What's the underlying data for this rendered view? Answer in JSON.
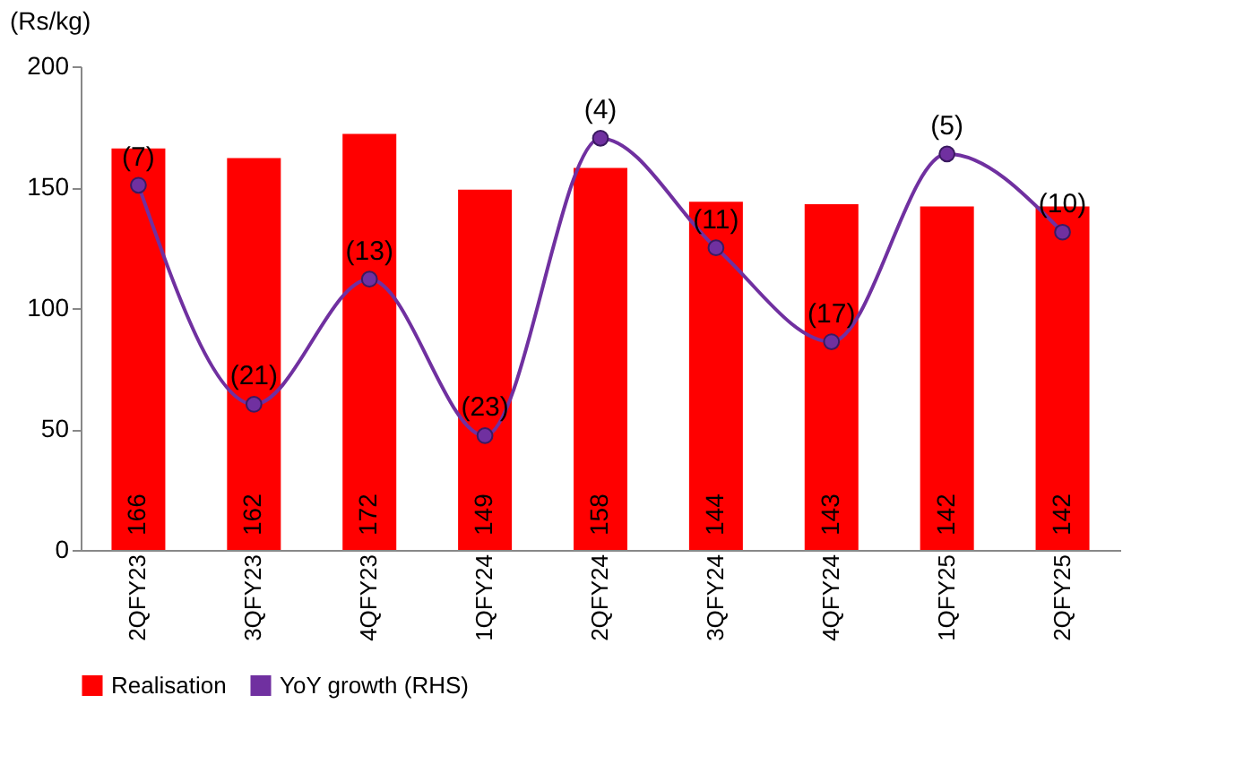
{
  "chart_data": {
    "type": "bar",
    "ylabel": "(Rs/kg)",
    "categories": [
      "2QFY23",
      "3QFY23",
      "4QFY23",
      "1QFY24",
      "2QFY24",
      "3QFY24",
      "4QFY24",
      "1QFY25",
      "2QFY25"
    ],
    "series": [
      {
        "name": "Realisation",
        "color": "#ff0000",
        "values": [
          166,
          162,
          172,
          149,
          158,
          144,
          143,
          142,
          142
        ],
        "data_labels": true
      },
      {
        "name": "YoY growth (RHS)",
        "type": "line",
        "axis": "y2",
        "color": "#7030a0",
        "marker": "circle",
        "values": [
          -7,
          -21,
          -13,
          -23,
          -4,
          -11,
          -17,
          -5,
          -10
        ],
        "value_labels": [
          "(7)",
          "(21)",
          "(13)",
          "(23)",
          "(4)",
          "(11)",
          "(17)",
          "(5)",
          "(10)"
        ]
      }
    ],
    "ylim": [
      0,
      200
    ],
    "yticks": [
      0,
      50,
      100,
      150,
      200
    ],
    "y2lim": [
      -30.3,
      0.6
    ],
    "grid": false,
    "legend": "bottom"
  }
}
